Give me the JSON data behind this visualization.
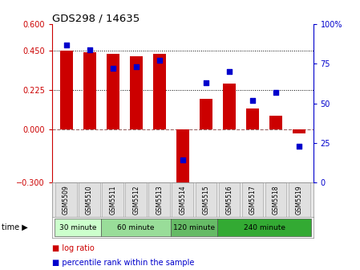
{
  "title": "GDS298 / 14635",
  "samples": [
    "GSM5509",
    "GSM5510",
    "GSM5511",
    "GSM5512",
    "GSM5513",
    "GSM5514",
    "GSM5515",
    "GSM5516",
    "GSM5517",
    "GSM5518",
    "GSM5519"
  ],
  "log_ratio": [
    0.45,
    0.44,
    0.43,
    0.42,
    0.43,
    -0.33,
    0.175,
    0.26,
    0.12,
    0.08,
    -0.02
  ],
  "percentile": [
    87,
    84,
    72,
    73,
    77,
    14,
    63,
    70,
    52,
    57,
    23
  ],
  "bar_color": "#cc0000",
  "dot_color": "#0000cc",
  "groups": [
    {
      "label": "30 minute",
      "start": 0,
      "end": 1,
      "color": "#ccffcc"
    },
    {
      "label": "60 minute",
      "start": 2,
      "end": 4,
      "color": "#99dd99"
    },
    {
      "label": "120 minute",
      "start": 5,
      "end": 6,
      "color": "#66bb66"
    },
    {
      "label": "240 minute",
      "start": 7,
      "end": 10,
      "color": "#33aa33"
    }
  ],
  "ylim_left": [
    -0.3,
    0.6
  ],
  "ylim_right": [
    0,
    100
  ],
  "yticks_left": [
    -0.3,
    0,
    0.225,
    0.45,
    0.6
  ],
  "yticks_right": [
    0,
    25,
    50,
    75,
    100
  ],
  "hlines": [
    0.225,
    0.45
  ],
  "bg_color": "#ffffff"
}
